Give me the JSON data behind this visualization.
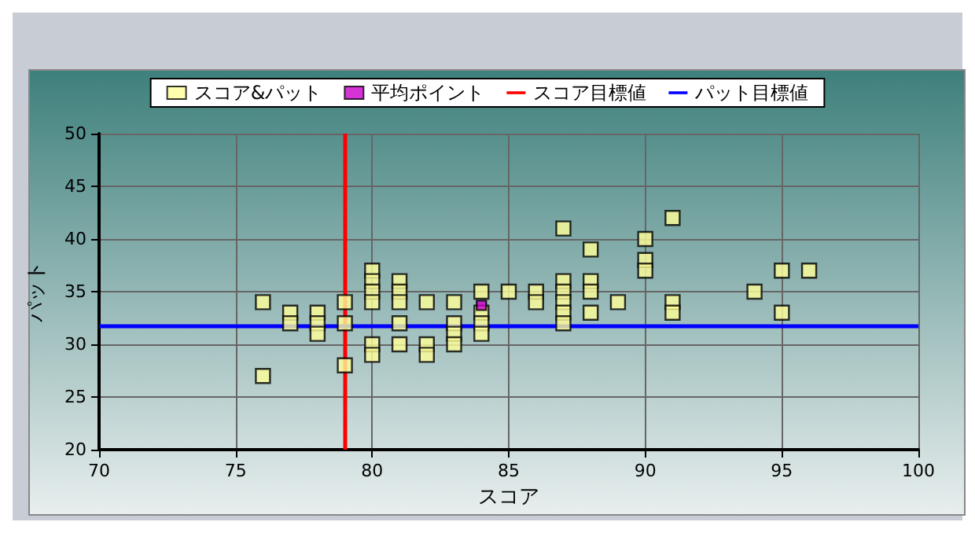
{
  "chart_data": {
    "type": "scatter",
    "xlabel": "スコア",
    "ylabel": "パット",
    "xlim": [
      70,
      100
    ],
    "xticks": [
      70,
      75,
      80,
      85,
      90,
      95,
      100
    ],
    "ylim": [
      20,
      50
    ],
    "yticks": [
      20,
      25,
      30,
      35,
      40,
      45,
      50
    ],
    "grid": true,
    "legend": "top",
    "marker": "square",
    "series": [
      {
        "name": "スコア&パット",
        "color": "#ffff99",
        "x": [
          76,
          76,
          77,
          77,
          78,
          78,
          78,
          79,
          79,
          79,
          80,
          80,
          80,
          80,
          80,
          80,
          81,
          81,
          81,
          81,
          81,
          82,
          82,
          82,
          83,
          83,
          83,
          83,
          84,
          84,
          84,
          84,
          85,
          86,
          86,
          87,
          87,
          87,
          87,
          87,
          87,
          88,
          88,
          88,
          88,
          89,
          90,
          90,
          90,
          91,
          91,
          91,
          94,
          95,
          95,
          96
        ],
        "values": [
          34,
          27,
          33,
          32,
          33,
          32,
          31,
          34,
          32,
          28,
          37,
          36,
          35,
          34,
          30,
          29,
          36,
          35,
          34,
          32,
          30,
          34,
          30,
          29,
          34,
          32,
          31,
          30,
          35,
          33,
          32,
          31,
          35,
          35,
          34,
          41,
          36,
          35,
          34,
          33,
          32,
          39,
          36,
          35,
          33,
          34,
          40,
          38,
          37,
          42,
          34,
          33,
          35,
          37,
          33,
          37
        ]
      },
      {
        "name": "平均ポイント",
        "color": "#cc00cc",
        "x": [
          84
        ],
        "values": [
          33.7
        ]
      }
    ],
    "ref_lines": [
      {
        "axis": "x",
        "value": 79,
        "label": "スコア目標値",
        "color": "#ff0000"
      },
      {
        "axis": "y",
        "value": 31.8,
        "label": "パット目標値",
        "color": "#0000ff"
      }
    ]
  }
}
